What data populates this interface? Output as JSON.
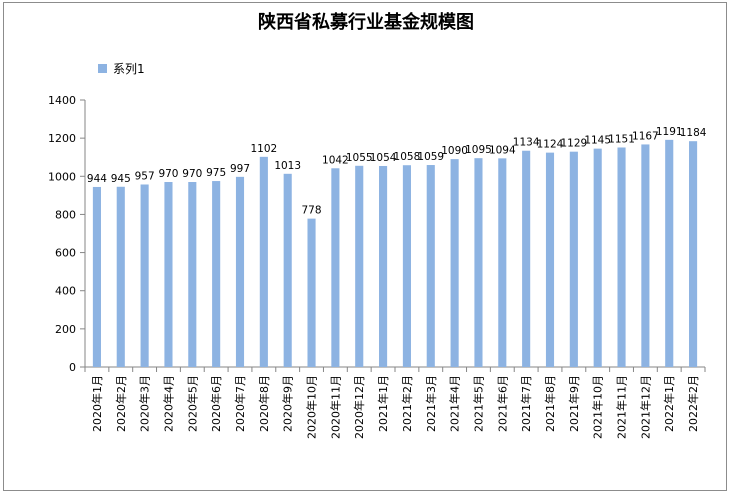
{
  "chart_data": {
    "type": "bar",
    "title": "陕西省私募行业基金规模图",
    "xlabel": "",
    "ylabel": "",
    "ylim": [
      0,
      1400
    ],
    "yticks": [
      0,
      200,
      400,
      600,
      800,
      1000,
      1200,
      1400
    ],
    "grid": false,
    "legend_position": "top-left",
    "bar_color": "#8DB3E2",
    "categories": [
      "2020年1月",
      "2020年2月",
      "2020年3月",
      "2020年4月",
      "2020年5月",
      "2020年6月",
      "2020年7月",
      "2020年8月",
      "2020年9月",
      "2020年10月",
      "2020年11月",
      "2020年12月",
      "2021年1月",
      "2021年2月",
      "2021年3月",
      "2021年4月",
      "2021年5月",
      "2021年6月",
      "2021年7月",
      "2021年8月",
      "2021年9月",
      "2021年10月",
      "2021年11月",
      "2021年12月",
      "2022年1月",
      "2022年2月"
    ],
    "series": [
      {
        "name": "系列1",
        "values": [
          944,
          945,
          957,
          970,
          970,
          975,
          997,
          1102,
          1013,
          778,
          1042,
          1055,
          1054,
          1058,
          1059,
          1090,
          1095,
          1094,
          1134,
          1124,
          1129,
          1145,
          1151,
          1167,
          1191,
          1184
        ]
      }
    ]
  }
}
